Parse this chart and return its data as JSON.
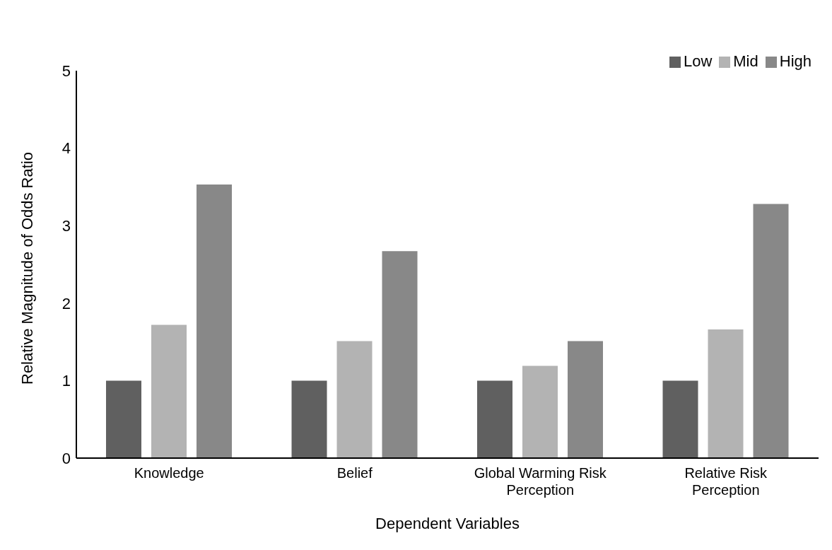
{
  "chart_data": {
    "type": "bar",
    "xlabel": "Dependent Variables",
    "ylabel": "Relative Magnitude of Odds Ratio",
    "categories": [
      "Knowledge",
      "Belief",
      "Global Warming Risk Perception",
      "Relative Risk Perception"
    ],
    "series": [
      {
        "name": "Low",
        "color": "#606060",
        "values": [
          1,
          1,
          1,
          1
        ]
      },
      {
        "name": "Mid",
        "color": "#b3b3b3",
        "values": [
          1.72,
          1.51,
          1.19,
          1.66
        ]
      },
      {
        "name": "High",
        "color": "#888888",
        "values": [
          3.53,
          2.67,
          1.51,
          3.28
        ]
      }
    ],
    "ylim": [
      0,
      5
    ],
    "yticks": [
      0,
      1,
      2,
      3,
      4,
      5
    ],
    "grid": false,
    "legend": "top right"
  }
}
